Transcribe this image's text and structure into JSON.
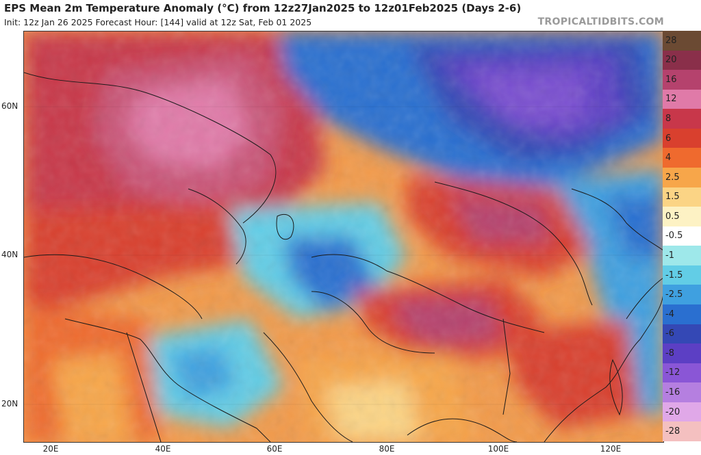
{
  "header": {
    "title": "EPS Mean 2m Temperature Anomaly (°C) from 12z27Jan2025 to 12z01Feb2025 (Days 2-6)",
    "subtitle": "Init: 12z Jan 26 2025   Forecast Hour: [144]   valid at 12z Sat, Feb 01 2025",
    "credit": "TROPICALTIDBITS.COM"
  },
  "map": {
    "lat_labels": [
      "60N",
      "40N",
      "20N"
    ],
    "lon_labels": [
      "20E",
      "40E",
      "60E",
      "80E",
      "100E",
      "120E"
    ],
    "extent": {
      "lon_min": 15,
      "lon_max": 130,
      "lat_min": 15,
      "lat_max": 70
    }
  },
  "colorbar": {
    "levels": [
      {
        "label": "28",
        "color": "#6b4a33"
      },
      {
        "label": "20",
        "color": "#8a2f4a"
      },
      {
        "label": "16",
        "color": "#b5426d"
      },
      {
        "label": "12",
        "color": "#e07aa8"
      },
      {
        "label": "8",
        "color": "#c8374a"
      },
      {
        "label": "6",
        "color": "#d9402e"
      },
      {
        "label": "4",
        "color": "#ef6a2e"
      },
      {
        "label": "2.5",
        "color": "#f7a64a"
      },
      {
        "label": "1.5",
        "color": "#fbd485"
      },
      {
        "label": "0.5",
        "color": "#fdf2c4"
      },
      {
        "label": "-0.5",
        "color": "#ffffff"
      },
      {
        "label": "-1",
        "color": "#9ee8ea"
      },
      {
        "label": "-1.5",
        "color": "#62cde6"
      },
      {
        "label": "-2.5",
        "color": "#3fa0e0"
      },
      {
        "label": "-4",
        "color": "#2a6fd0"
      },
      {
        "label": "-6",
        "color": "#3448b5"
      },
      {
        "label": "-8",
        "color": "#5c3fc4"
      },
      {
        "label": "-12",
        "color": "#8a56d6"
      },
      {
        "label": "-16",
        "color": "#b57fe0"
      },
      {
        "label": "-20",
        "color": "#e0a8e8"
      },
      {
        "label": "-28",
        "color": "#f4c0c0"
      }
    ]
  }
}
